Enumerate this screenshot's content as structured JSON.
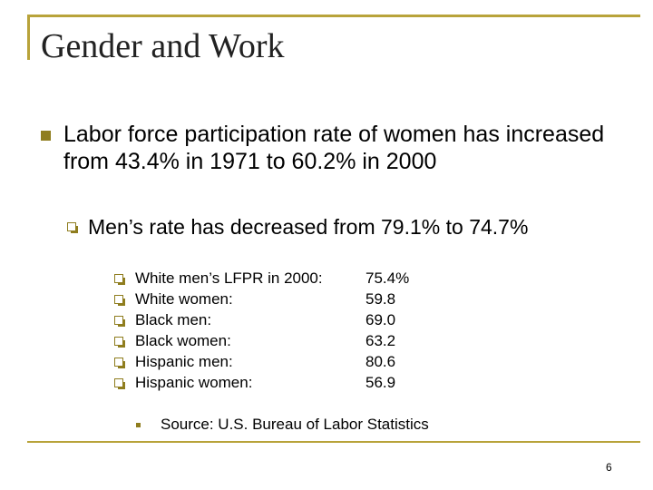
{
  "slide": {
    "title": "Gender and Work",
    "bullet1": "Labor force participation rate of women has increased from 43.4% in 1971 to 60.2% in 2000",
    "bullet2": "Men’s rate has decreased from 79.1% to 74.7%",
    "stats": [
      {
        "label": "White men’s LFPR in 2000:",
        "value": "75.4%"
      },
      {
        "label": "White women:",
        "value": "59.8"
      },
      {
        "label": "Black men:",
        "value": "69.0"
      },
      {
        "label": "Black women:",
        "value": "63.2"
      },
      {
        "label": "Hispanic men:",
        "value": "80.6"
      },
      {
        "label": "Hispanic women:",
        "value": "56.9"
      }
    ],
    "source": "Source: U.S. Bureau of Labor Statistics",
    "page_number": "6"
  },
  "colors": {
    "frame": "#b8a33a",
    "bullet": "#8f7d1e"
  }
}
